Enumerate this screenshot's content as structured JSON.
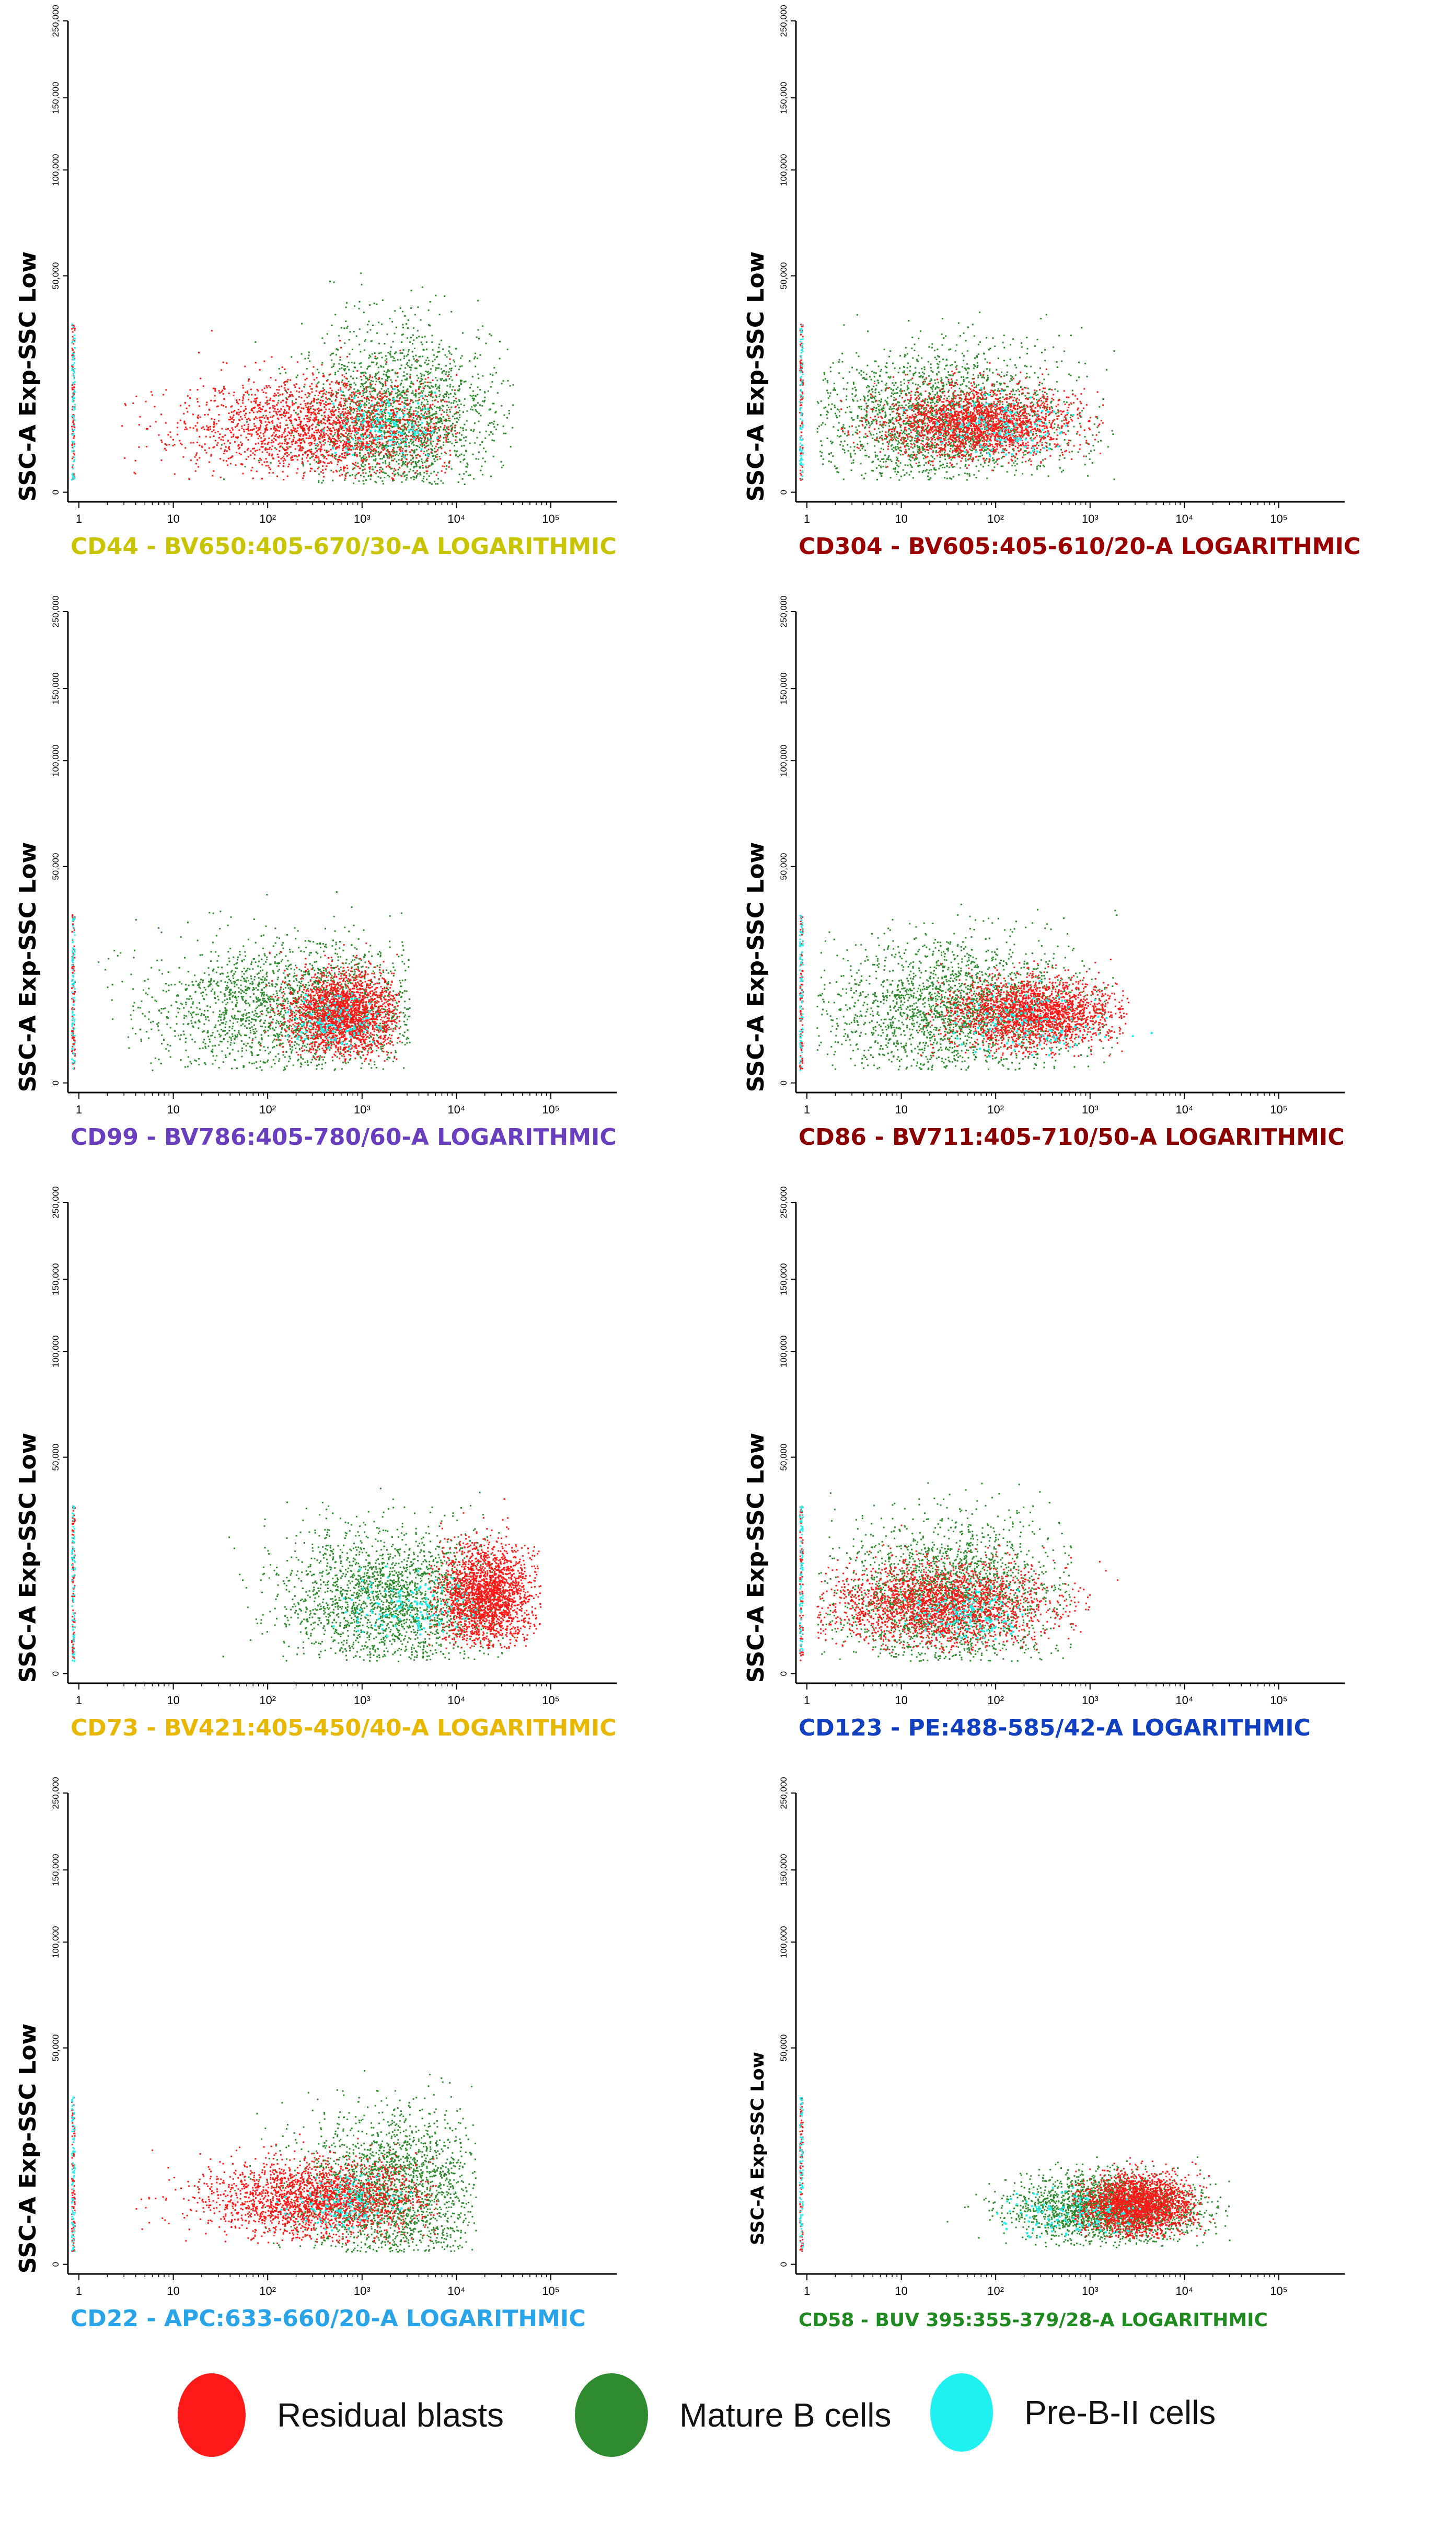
{
  "legend": {
    "items": [
      {
        "label": "Residual blasts",
        "color": "#ff1a1a"
      },
      {
        "label": "Mature B cells",
        "color": "#2e8b2e"
      },
      {
        "label": "Pre-B-II cells",
        "color": "#1ff0f0"
      }
    ]
  },
  "chart_data": [
    {
      "type": "scatter",
      "xlabel": "CD44 - BV650:405-670/30-A LOGARITHMIC",
      "xlabel_color": "#c8c400",
      "ylabel": "SSC-A Exp-SSC Low",
      "x_scale": "log",
      "x_ticks": [
        "1",
        "10",
        "10²",
        "10³",
        "10⁴",
        "10⁵"
      ],
      "y_ticks": [
        "0",
        "50,000",
        "100,000",
        "150,000",
        "250,000"
      ],
      "series": [
        {
          "name": "Residual blasts",
          "color": "#ff1a1a",
          "x_range": [
            0.4,
            4.0
          ],
          "y_range": [
            3000,
            45000
          ],
          "center": [
            2.6,
            15000
          ],
          "spread": [
            0.75,
            6000
          ]
        },
        {
          "name": "Mature B cells",
          "color": "#2e8b2e",
          "x_range": [
            1.5,
            4.6
          ],
          "y_range": [
            2000,
            52000
          ],
          "center": [
            3.4,
            17000
          ],
          "spread": [
            0.5,
            10000
          ]
        },
        {
          "name": "Pre-B-II cells",
          "color": "#1ff0f0",
          "x_range": [
            2.5,
            3.8
          ],
          "y_range": [
            8000,
            25000
          ],
          "center": [
            3.2,
            15000
          ],
          "spread": [
            0.3,
            4000
          ]
        }
      ]
    },
    {
      "type": "scatter",
      "xlabel": "CD304 - BV605:405-610/20-A LOGARITHMIC",
      "xlabel_color": "#9a0000",
      "ylabel": "SSC-A Exp-SSC Low",
      "x_scale": "log",
      "x_ticks": [
        "1",
        "10",
        "10²",
        "10³",
        "10⁴",
        "10⁵"
      ],
      "y_ticks": [
        "0",
        "50,000",
        "100,000",
        "150,000",
        "250,000"
      ],
      "series": [
        {
          "name": "Residual blasts",
          "color": "#ff1a1a",
          "x_range": [
            0.2,
            3.2
          ],
          "y_range": [
            5000,
            35000
          ],
          "center": [
            1.8,
            16000
          ],
          "spread": [
            0.5,
            4000
          ]
        },
        {
          "name": "Mature B cells",
          "color": "#2e8b2e",
          "x_range": [
            0.1,
            3.3
          ],
          "y_range": [
            3000,
            48000
          ],
          "center": [
            1.4,
            17000
          ],
          "spread": [
            0.7,
            8000
          ]
        },
        {
          "name": "Pre-B-II cells",
          "color": "#1ff0f0",
          "x_range": [
            1.0,
            3.0
          ],
          "y_range": [
            8000,
            25000
          ],
          "center": [
            2.0,
            15000
          ],
          "spread": [
            0.4,
            4000
          ]
        }
      ]
    },
    {
      "type": "scatter",
      "xlabel": "CD99 - BV786:405-780/60-A LOGARITHMIC",
      "xlabel_color": "#6a3fbf",
      "ylabel": "SSC-A Exp-SSC Low",
      "x_scale": "log",
      "x_ticks": [
        "1",
        "10",
        "10²",
        "10³",
        "10⁴",
        "10⁵"
      ],
      "y_ticks": [
        "0",
        "50,000",
        "100,000",
        "150,000",
        "250,000"
      ],
      "series": [
        {
          "name": "Residual blasts",
          "color": "#ff1a1a",
          "x_range": [
            1.8,
            3.4
          ],
          "y_range": [
            5000,
            35000
          ],
          "center": [
            2.8,
            16000
          ],
          "spread": [
            0.3,
            5000
          ]
        },
        {
          "name": "Mature B cells",
          "color": "#2e8b2e",
          "x_range": [
            0.1,
            3.5
          ],
          "y_range": [
            3000,
            48000
          ],
          "center": [
            2.3,
            17000
          ],
          "spread": [
            0.8,
            8000
          ]
        },
        {
          "name": "Pre-B-II cells",
          "color": "#1ff0f0",
          "x_range": [
            2.2,
            3.2
          ],
          "y_range": [
            8000,
            22000
          ],
          "center": [
            2.7,
            14000
          ],
          "spread": [
            0.25,
            3500
          ]
        }
      ]
    },
    {
      "type": "scatter",
      "xlabel": "CD86 - BV711:405-710/50-A LOGARITHMIC",
      "xlabel_color": "#8a0000",
      "ylabel": "SSC-A Exp-SSC Low",
      "x_scale": "log",
      "x_ticks": [
        "1",
        "10",
        "10²",
        "10³",
        "10⁴",
        "10⁵"
      ],
      "y_ticks": [
        "0",
        "50,000",
        "100,000",
        "150,000",
        "250,000"
      ],
      "series": [
        {
          "name": "Residual blasts",
          "color": "#ff1a1a",
          "x_range": [
            1.0,
            3.4
          ],
          "y_range": [
            6000,
            35000
          ],
          "center": [
            2.4,
            16000
          ],
          "spread": [
            0.45,
            4000
          ]
        },
        {
          "name": "Mature B cells",
          "color": "#2e8b2e",
          "x_range": [
            0.1,
            3.3
          ],
          "y_range": [
            3000,
            48000
          ],
          "center": [
            1.6,
            17000
          ],
          "spread": [
            0.7,
            8000
          ]
        },
        {
          "name": "Pre-B-II cells",
          "color": "#1ff0f0",
          "x_range": [
            1.5,
            5.2
          ],
          "y_range": [
            6000,
            30000
          ],
          "center": [
            2.2,
            14000
          ],
          "spread": [
            0.5,
            4000
          ]
        }
      ]
    },
    {
      "type": "scatter",
      "xlabel": "CD73 - BV421:405-450/40-A LOGARITHMIC",
      "xlabel_color": "#e8b800",
      "ylabel": "SSC-A Exp-SSC Low",
      "x_scale": "log",
      "x_ticks": [
        "1",
        "10",
        "10²",
        "10³",
        "10⁴",
        "10⁵"
      ],
      "y_ticks": [
        "0",
        "50,000",
        "100,000",
        "150,000",
        "250,000"
      ],
      "series": [
        {
          "name": "Residual blasts",
          "color": "#ff1a1a",
          "x_range": [
            3.7,
            4.9
          ],
          "y_range": [
            6000,
            45000
          ],
          "center": [
            4.3,
            18000
          ],
          "spread": [
            0.25,
            6000
          ]
        },
        {
          "name": "Mature B cells",
          "color": "#2e8b2e",
          "x_range": [
            0.8,
            4.5
          ],
          "y_range": [
            3000,
            50000
          ],
          "center": [
            3.3,
            17000
          ],
          "spread": [
            0.6,
            8000
          ]
        },
        {
          "name": "Pre-B-II cells",
          "color": "#1ff0f0",
          "x_range": [
            2.5,
            4.2
          ],
          "y_range": [
            8000,
            25000
          ],
          "center": [
            3.5,
            15000
          ],
          "spread": [
            0.35,
            4000
          ]
        }
      ]
    },
    {
      "type": "scatter",
      "xlabel": "CD123 - PE:488-585/42-A LOGARITHMIC",
      "xlabel_color": "#1040c0",
      "ylabel": "SSC-A Exp-SSC Low",
      "x_scale": "log",
      "x_ticks": [
        "1",
        "10",
        "10²",
        "10³",
        "10⁴",
        "10⁵"
      ],
      "y_ticks": [
        "0",
        "50,000",
        "100,000",
        "150,000",
        "250,000"
      ],
      "series": [
        {
          "name": "Residual blasts",
          "color": "#ff1a1a",
          "x_range": [
            0.1,
            3.8
          ],
          "y_range": [
            5000,
            45000
          ],
          "center": [
            1.4,
            16000
          ],
          "spread": [
            0.6,
            5000
          ]
        },
        {
          "name": "Mature B cells",
          "color": "#2e8b2e",
          "x_range": [
            0.1,
            2.8
          ],
          "y_range": [
            3000,
            50000
          ],
          "center": [
            1.5,
            18000
          ],
          "spread": [
            0.6,
            9000
          ]
        },
        {
          "name": "Pre-B-II cells",
          "color": "#1ff0f0",
          "x_range": [
            1.0,
            2.3
          ],
          "y_range": [
            8000,
            22000
          ],
          "center": [
            1.7,
            14000
          ],
          "spread": [
            0.3,
            3500
          ]
        }
      ]
    },
    {
      "type": "scatter",
      "xlabel": "CD22 - APC:633-660/20-A LOGARITHMIC",
      "xlabel_color": "#2aa4e8",
      "ylabel": "SSC-A Exp-SSC Low",
      "x_scale": "log",
      "x_ticks": [
        "1",
        "10",
        "10²",
        "10³",
        "10⁴",
        "10⁵"
      ],
      "y_ticks": [
        "0",
        "50,000",
        "100,000",
        "150,000",
        "250,000"
      ],
      "series": [
        {
          "name": "Residual blasts",
          "color": "#ff1a1a",
          "x_range": [
            0.5,
            3.8
          ],
          "y_range": [
            5000,
            40000
          ],
          "center": [
            2.5,
            15000
          ],
          "spread": [
            0.6,
            4500
          ]
        },
        {
          "name": "Mature B cells",
          "color": "#2e8b2e",
          "x_range": [
            1.0,
            4.2
          ],
          "y_range": [
            3000,
            50000
          ],
          "center": [
            3.3,
            17000
          ],
          "spread": [
            0.5,
            9000
          ]
        },
        {
          "name": "Pre-B-II cells",
          "color": "#1ff0f0",
          "x_range": [
            2.0,
            3.6
          ],
          "y_range": [
            8000,
            22000
          ],
          "center": [
            2.8,
            14000
          ],
          "spread": [
            0.35,
            3500
          ]
        }
      ]
    },
    {
      "type": "scatter",
      "xlabel": "CD58 - BUV 395:355-379/28-A LOGARITHMIC",
      "xlabel_color": "#1f8a1f",
      "ylabel": "SSC-A Exp-SSC Low",
      "x_scale": "log",
      "x_ticks": [
        "1",
        "10",
        "10²",
        "10³",
        "10⁴",
        "10⁵"
      ],
      "y_ticks": [
        "0",
        "50,000",
        "100,000",
        "150,000",
        "250,000"
      ],
      "series": [
        {
          "name": "Residual blasts",
          "color": "#ff1a1a",
          "x_range": [
            2.8,
            4.3
          ],
          "y_range": [
            6000,
            25000
          ],
          "center": [
            3.5,
            14000
          ],
          "spread": [
            0.3,
            3500
          ]
        },
        {
          "name": "Mature B cells",
          "color": "#2e8b2e",
          "x_range": [
            1.3,
            4.5
          ],
          "y_range": [
            4000,
            25000
          ],
          "center": [
            3.2,
            13000
          ],
          "spread": [
            0.5,
            4000
          ]
        },
        {
          "name": "Pre-B-II cells",
          "color": "#1ff0f0",
          "x_range": [
            2.0,
            3.6
          ],
          "y_range": [
            6000,
            18000
          ],
          "center": [
            2.8,
            12000
          ],
          "spread": [
            0.4,
            3000
          ]
        }
      ]
    }
  ]
}
